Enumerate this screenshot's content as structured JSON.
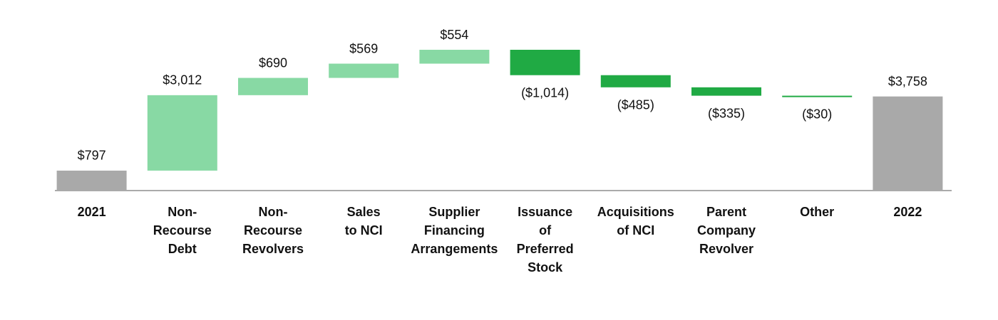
{
  "chart_data": {
    "type": "waterfall",
    "categories": [
      "2021",
      "Non-\nRecourse\nDebt",
      "Non-\nRecourse\nRevolvers",
      "Sales\nto NCI",
      "Supplier\nFinancing\nArrangements",
      "Issuance\nof\nPreferred\nStock",
      "Acquisitions\nof NCI",
      "Parent\nCompany\nRevolver",
      "Other",
      "2022"
    ],
    "values": [
      797,
      3012,
      690,
      569,
      554,
      -1014,
      -485,
      -335,
      -30,
      3758
    ],
    "value_labels": [
      "$797",
      "$3,012",
      "$690",
      "$569",
      "$554",
      "($1,014)",
      "($485)",
      "($335)",
      "($30)",
      "$3,758"
    ],
    "total_color": "#a9a9a9",
    "increase_color": "#88d9a4",
    "decrease_color": "#20aa44"
  }
}
